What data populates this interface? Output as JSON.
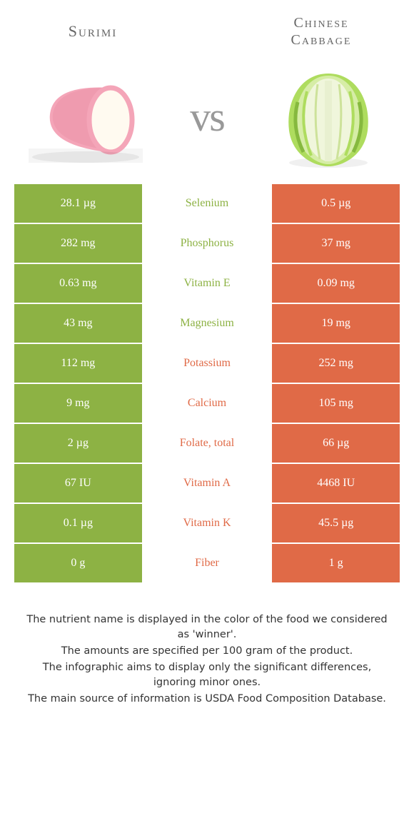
{
  "colors": {
    "left_bg": "#8db244",
    "right_bg": "#e06a47",
    "mid_bg": "#ffffff",
    "title_color": "#666666",
    "vs_color": "#999999",
    "footer_color": "#333333",
    "surimi_pink": "#f4a5b8",
    "surimi_pink_dark": "#e88ba3",
    "surimi_cream": "#fffaf0",
    "cabbage_green": "#aedc5e",
    "cabbage_green_dark": "#86b93e",
    "cabbage_pale": "#f0f6dc"
  },
  "header": {
    "left_title": "Surimi",
    "right_title_line1": "Chinese",
    "right_title_line2": "Cabbage",
    "vs_text": "vs"
  },
  "rows": [
    {
      "left": "28.1 µg",
      "mid": "Selenium",
      "winner": "left",
      "right": "0.5 µg"
    },
    {
      "left": "282 mg",
      "mid": "Phosphorus",
      "winner": "left",
      "right": "37 mg"
    },
    {
      "left": "0.63 mg",
      "mid": "Vitamin E",
      "winner": "left",
      "right": "0.09 mg"
    },
    {
      "left": "43 mg",
      "mid": "Magnesium",
      "winner": "left",
      "right": "19 mg"
    },
    {
      "left": "112 mg",
      "mid": "Potassium",
      "winner": "right",
      "right": "252 mg"
    },
    {
      "left": "9 mg",
      "mid": "Calcium",
      "winner": "right",
      "right": "105 mg"
    },
    {
      "left": "2 µg",
      "mid": "Folate, total",
      "winner": "right",
      "right": "66 µg"
    },
    {
      "left": "67 IU",
      "mid": "Vitamin A",
      "winner": "right",
      "right": "4468 IU"
    },
    {
      "left": "0.1 µg",
      "mid": "Vitamin K",
      "winner": "right",
      "right": "45.5 µg"
    },
    {
      "left": "0 g",
      "mid": "Fiber",
      "winner": "right",
      "right": "1 g"
    }
  ],
  "footer": {
    "p1": "The nutrient name is displayed in the color of the food we considered as 'winner'.",
    "p2": "The amounts are specified per 100 gram of the product.",
    "p3": "The infographic aims to display only the significant differences, ignoring minor ones.",
    "p4": "The main source of information is USDA Food Composition Database."
  }
}
